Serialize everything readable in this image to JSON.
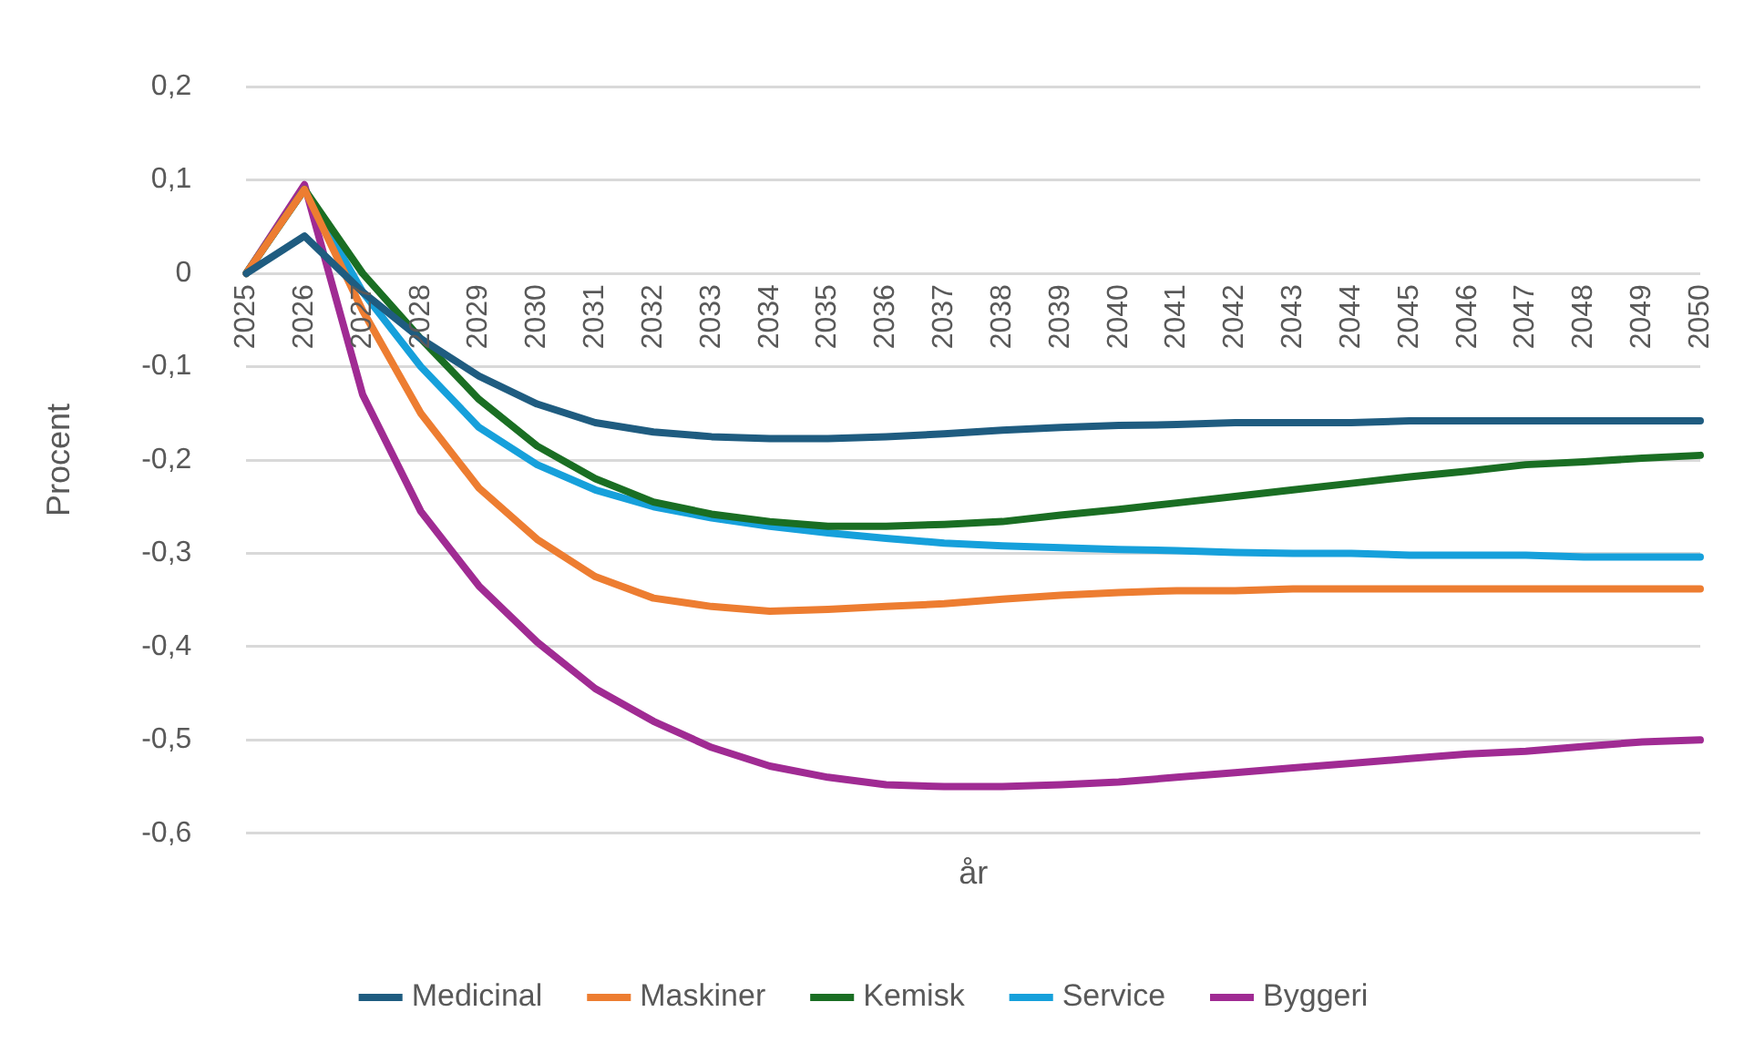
{
  "chart_data": {
    "type": "line",
    "xlabel": "år",
    "ylabel": "Procent",
    "categories": [
      "2025",
      "2026",
      "2027",
      "2028",
      "2029",
      "2030",
      "2031",
      "2032",
      "2033",
      "2034",
      "2035",
      "2036",
      "2037",
      "2038",
      "2039",
      "2040",
      "2041",
      "2042",
      "2043",
      "2044",
      "2045",
      "2046",
      "2047",
      "2048",
      "2049",
      "2050"
    ],
    "series": [
      {
        "name": "Medicinal",
        "color": "#1f5c80",
        "values": [
          0,
          0.04,
          -0.02,
          -0.07,
          -0.11,
          -0.14,
          -0.16,
          -0.17,
          -0.175,
          -0.177,
          -0.177,
          -0.175,
          -0.172,
          -0.168,
          -0.165,
          -0.163,
          -0.162,
          -0.16,
          -0.16,
          -0.16,
          -0.158,
          -0.158,
          -0.158,
          -0.158,
          -0.158,
          -0.158
        ]
      },
      {
        "name": "Maskiner",
        "color": "#ed7d31",
        "values": [
          0,
          0.09,
          -0.04,
          -0.15,
          -0.23,
          -0.285,
          -0.325,
          -0.348,
          -0.357,
          -0.362,
          -0.36,
          -0.357,
          -0.354,
          -0.349,
          -0.345,
          -0.342,
          -0.34,
          -0.34,
          -0.338,
          -0.338,
          -0.338,
          -0.338,
          -0.338,
          -0.338,
          -0.338,
          -0.338
        ]
      },
      {
        "name": "Kemisk",
        "color": "#1a6e23",
        "values": [
          0,
          0.09,
          0,
          -0.07,
          -0.135,
          -0.185,
          -0.22,
          -0.245,
          -0.258,
          -0.266,
          -0.271,
          -0.271,
          -0.269,
          -0.266,
          -0.259,
          -0.253,
          -0.246,
          -0.239,
          -0.232,
          -0.225,
          -0.218,
          -0.212,
          -0.205,
          -0.202,
          -0.198,
          -0.195
        ]
      },
      {
        "name": "Service",
        "color": "#16a0db",
        "values": [
          0,
          0.09,
          -0.02,
          -0.1,
          -0.165,
          -0.205,
          -0.232,
          -0.25,
          -0.262,
          -0.271,
          -0.278,
          -0.284,
          -0.289,
          -0.292,
          -0.294,
          -0.296,
          -0.297,
          -0.299,
          -0.3,
          -0.3,
          -0.302,
          -0.302,
          -0.302,
          -0.304,
          -0.304,
          -0.304
        ]
      },
      {
        "name": "Byggeri",
        "color": "#a02b93",
        "values": [
          0,
          0.095,
          -0.13,
          -0.255,
          -0.335,
          -0.395,
          -0.445,
          -0.48,
          -0.508,
          -0.528,
          -0.54,
          -0.548,
          -0.55,
          -0.55,
          -0.548,
          -0.545,
          -0.54,
          -0.535,
          -0.53,
          -0.525,
          -0.52,
          -0.515,
          -0.512,
          -0.507,
          -0.502,
          -0.5
        ]
      }
    ],
    "ylim": [
      -0.6,
      0.2
    ],
    "yticks": [
      {
        "value": 0.2,
        "label": "0,2"
      },
      {
        "value": 0.1,
        "label": "0,1"
      },
      {
        "value": 0,
        "label": "0"
      },
      {
        "value": -0.1,
        "label": "-0,1"
      },
      {
        "value": -0.2,
        "label": "-0,2"
      },
      {
        "value": -0.3,
        "label": "-0,3"
      },
      {
        "value": -0.4,
        "label": "-0,4"
      },
      {
        "value": -0.5,
        "label": "-0,5"
      },
      {
        "value": -0.6,
        "label": "-0,6"
      }
    ],
    "grid": "y",
    "legend": "bottom",
    "marker": "none",
    "line_style": "solid"
  }
}
